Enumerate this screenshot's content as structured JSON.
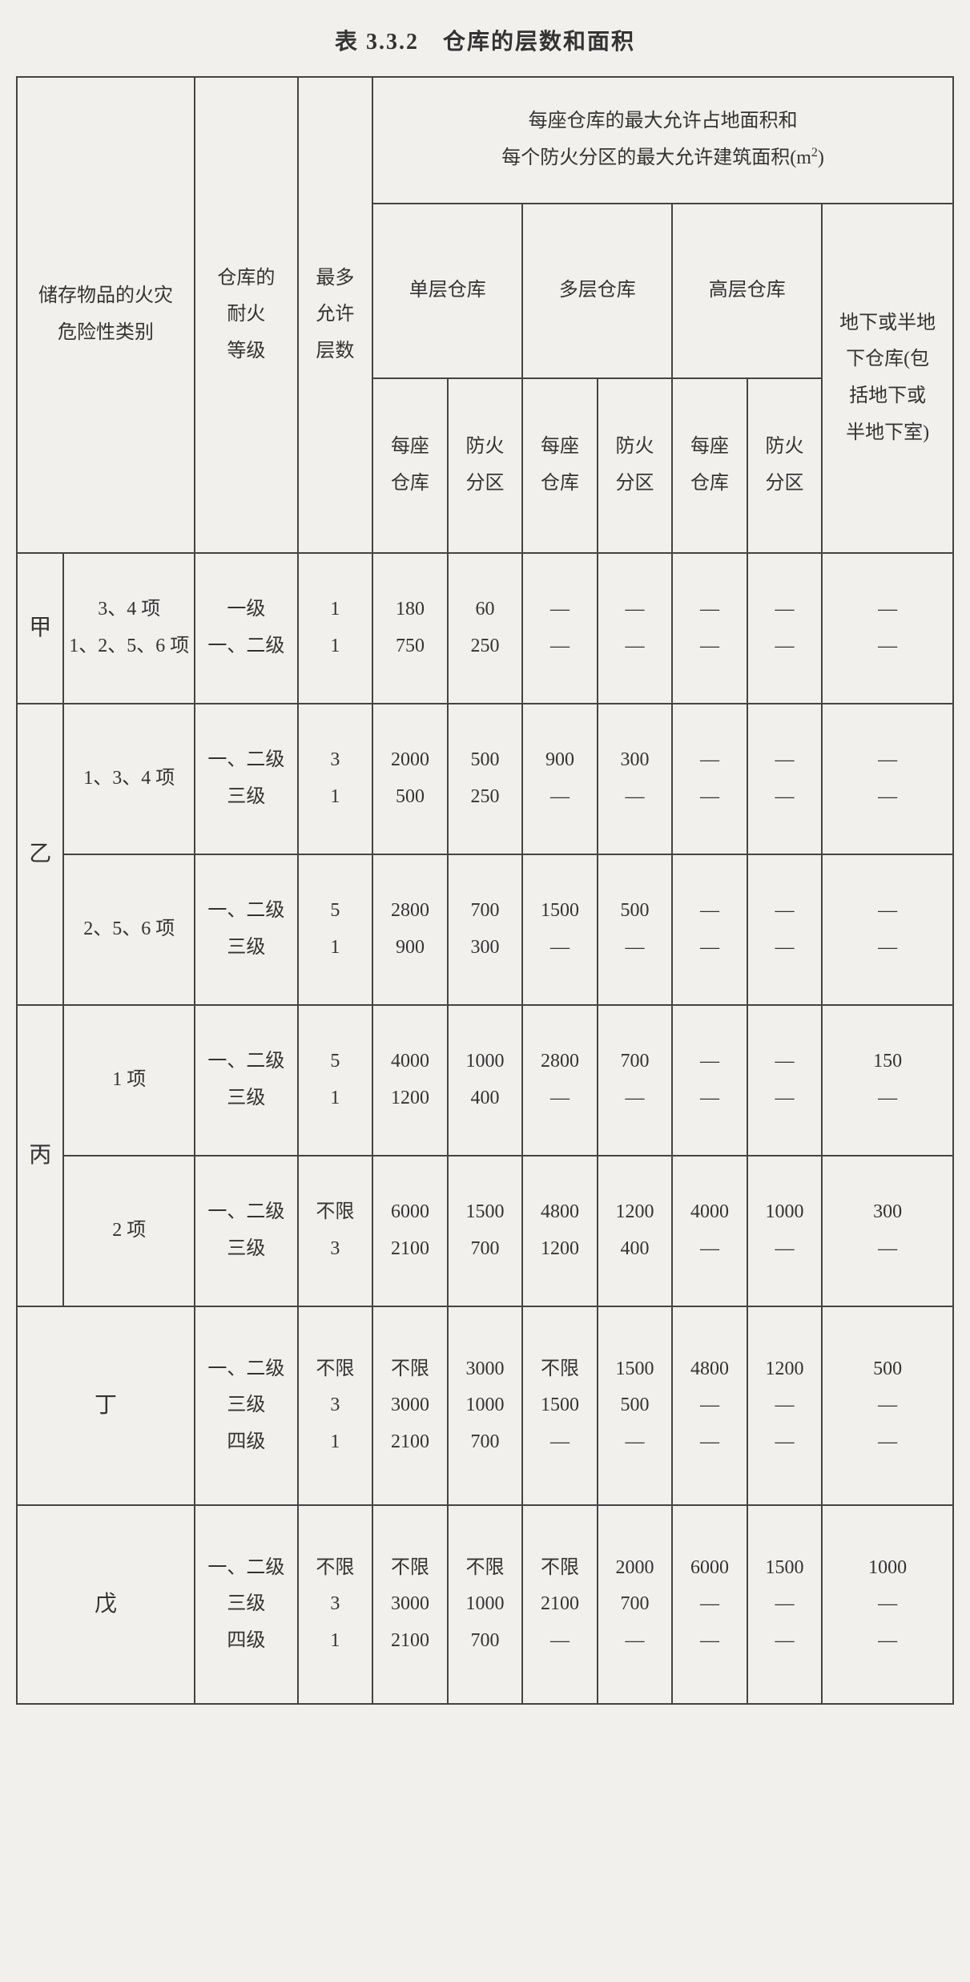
{
  "title": "表 3.3.2　仓库的层数和面积",
  "header": {
    "col_category": "储存物品的火灾\n危险性类别",
    "col_fire_grade": "仓库的\n耐火\n等级",
    "col_max_floors": "最多\n允许\n层数",
    "col_area_top_1": "每座仓库的最大允许占地面积和",
    "col_area_top_2": "每个防火分区的最大允许建筑面积(m²)",
    "col_single": "单层仓库",
    "col_multi": "多层仓库",
    "col_high": "高层仓库",
    "col_under": "地下或半地\n下仓库(包\n括地下或\n半地下室)",
    "sub_warehouse": "每座\n仓库",
    "sub_zone": "防火\n分区"
  },
  "cats": {
    "jia": "甲",
    "yi": "乙",
    "bing": "丙",
    "ding": "丁",
    "wu": "戊"
  },
  "rows": {
    "jia": {
      "sub": "3、4 项\n1、2、5、6 项",
      "grade": "一级\n一、二级",
      "floors": "1\n1",
      "c1": "180\n750",
      "c2": "60\n250",
      "c3": "—\n—",
      "c4": "—\n—",
      "c5": "—\n—",
      "c6": "—\n—",
      "c7": "—\n—"
    },
    "yi1": {
      "sub": "1、3、4 项",
      "grade": "一、二级\n三级",
      "floors": "3\n1",
      "c1": "2000\n500",
      "c2": "500\n250",
      "c3": "900\n—",
      "c4": "300\n—",
      "c5": "—\n—",
      "c6": "—\n—",
      "c7": "—\n—"
    },
    "yi2": {
      "sub": "2、5、6 项",
      "grade": "一、二级\n三级",
      "floors": "5\n1",
      "c1": "2800\n900",
      "c2": "700\n300",
      "c3": "1500\n—",
      "c4": "500\n—",
      "c5": "—\n—",
      "c6": "—\n—",
      "c7": "—\n—"
    },
    "bing1": {
      "sub": "1 项",
      "grade": "一、二级\n三级",
      "floors": "5\n1",
      "c1": "4000\n1200",
      "c2": "1000\n400",
      "c3": "2800\n—",
      "c4": "700\n—",
      "c5": "—\n—",
      "c6": "—\n—",
      "c7": "150\n—"
    },
    "bing2": {
      "sub": "2 项",
      "grade": "一、二级\n三级",
      "floors": "不限\n3",
      "c1": "6000\n2100",
      "c2": "1500\n700",
      "c3": "4800\n1200",
      "c4": "1200\n400",
      "c5": "4000\n—",
      "c6": "1000\n—",
      "c7": "300\n—"
    },
    "ding": {
      "grade": "一、二级\n三级\n四级",
      "floors": "不限\n3\n1",
      "c1": "不限\n3000\n2100",
      "c2": "3000\n1000\n700",
      "c3": "不限\n1500\n—",
      "c4": "1500\n500\n—",
      "c5": "4800\n—\n—",
      "c6": "1200\n—\n—",
      "c7": "500\n—\n—"
    },
    "wu": {
      "grade": "一、二级\n三级\n四级",
      "floors": "不限\n3\n1",
      "c1": "不限\n3000\n2100",
      "c2": "不限\n1000\n700",
      "c3": "不限\n2100\n—",
      "c4": "2000\n700\n—",
      "c5": "6000\n—\n—",
      "c6": "1500\n—\n—",
      "c7": "1000\n—\n—"
    }
  },
  "style": {
    "col_widths_pct": [
      5,
      14,
      11,
      8,
      8,
      8,
      8,
      8,
      8,
      8,
      14
    ],
    "border_color": "#444",
    "background": "#f2f0ec",
    "text_color": "#333",
    "title_fontsize": 28,
    "cell_fontsize": 24
  }
}
